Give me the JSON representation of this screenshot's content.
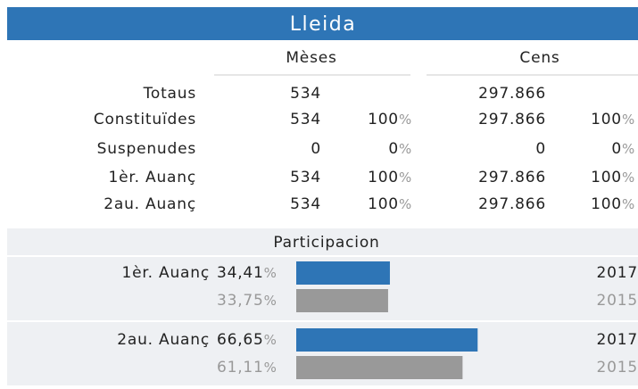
{
  "header": {
    "title": "Lleida"
  },
  "table": {
    "columns": [
      "Mèses",
      "Cens"
    ],
    "pct_sign": "%",
    "rows": [
      {
        "label": "Totaus",
        "meses": "534",
        "meses_pct": null,
        "cens": "297.866",
        "cens_pct": null
      },
      {
        "label": "Constituïdes",
        "meses": "534",
        "meses_pct": "100",
        "cens": "297.866",
        "cens_pct": "100"
      },
      {
        "label": "Suspenudes",
        "meses": "0",
        "meses_pct": "0",
        "cens": "0",
        "cens_pct": "0"
      },
      {
        "label": "1èr. Auanç",
        "meses": "534",
        "meses_pct": "100",
        "cens": "297.866",
        "cens_pct": "100"
      },
      {
        "label": "2au. Auanç",
        "meses": "534",
        "meses_pct": "100",
        "cens": "297.866",
        "cens_pct": "100"
      }
    ]
  },
  "participation": {
    "title": "Participacion",
    "sign": "%",
    "groups": [
      {
        "label": "1èr. Auanç",
        "bars": [
          {
            "year": "2017",
            "value": 34.41,
            "value_label": "34,41",
            "color": "#2e75b6"
          },
          {
            "year": "2015",
            "value": 33.75,
            "value_label": "33,75",
            "color": "#999999"
          }
        ]
      },
      {
        "label": "2au. Auanç",
        "bars": [
          {
            "year": "2017",
            "value": 66.65,
            "value_label": "66,65",
            "color": "#2e75b6"
          },
          {
            "year": "2015",
            "value": 61.11,
            "value_label": "61,11",
            "color": "#999999"
          }
        ]
      }
    ]
  }
}
